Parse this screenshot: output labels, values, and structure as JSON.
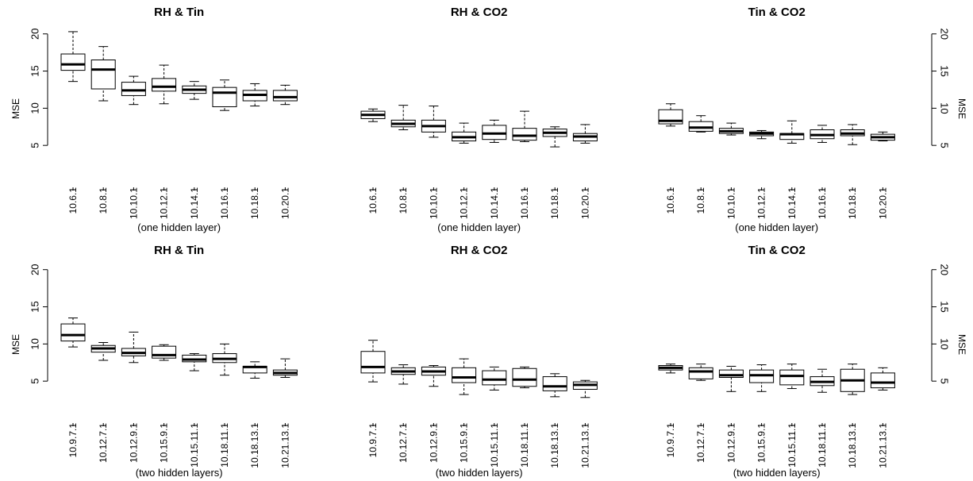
{
  "chart_data": [
    {
      "type": "boxplot",
      "title": "RH & Tin",
      "xlabel": "(one hidden layer)",
      "ylabel": "MSE",
      "ylim": [
        0,
        22
      ],
      "yticks": [
        5,
        10,
        15,
        20
      ],
      "categories": [
        "10.6.1",
        "10.8.1",
        "10.10.1",
        "10.12.1",
        "10.14.1",
        "10.16.1",
        "10.18.1",
        "10.20.1"
      ],
      "boxes": [
        {
          "min": 13.6,
          "q1": 15.1,
          "median": 15.9,
          "q3": 17.3,
          "max": 20.3
        },
        {
          "min": 11.0,
          "q1": 12.6,
          "median": 15.2,
          "q3": 16.5,
          "max": 18.3
        },
        {
          "min": 10.5,
          "q1": 11.7,
          "median": 12.4,
          "q3": 13.5,
          "max": 14.3
        },
        {
          "min": 10.6,
          "q1": 12.3,
          "median": 12.9,
          "q3": 14.0,
          "max": 15.8
        },
        {
          "min": 11.2,
          "q1": 12.0,
          "median": 12.5,
          "q3": 13.0,
          "max": 13.6
        },
        {
          "min": 9.7,
          "q1": 10.2,
          "median": 12.1,
          "q3": 12.8,
          "max": 13.8
        },
        {
          "min": 10.3,
          "q1": 11.0,
          "median": 11.8,
          "q3": 12.4,
          "max": 13.3
        },
        {
          "min": 10.5,
          "q1": 11.0,
          "median": 11.5,
          "q3": 12.4,
          "max": 13.1
        }
      ]
    },
    {
      "type": "boxplot",
      "title": "RH & CO2",
      "xlabel": "(one hidden layer)",
      "ylabel": "",
      "ylim": [
        0,
        22
      ],
      "categories": [
        "10.6.1",
        "10.8.1",
        "10.10.1",
        "10.12.1",
        "10.14.1",
        "10.16.1",
        "10.18.1",
        "10.20.1"
      ],
      "boxes": [
        {
          "min": 8.2,
          "q1": 8.6,
          "median": 9.1,
          "q3": 9.6,
          "max": 9.9
        },
        {
          "min": 7.1,
          "q1": 7.5,
          "median": 7.9,
          "q3": 8.4,
          "max": 10.4
        },
        {
          "min": 6.1,
          "q1": 6.8,
          "median": 7.6,
          "q3": 8.4,
          "max": 10.3
        },
        {
          "min": 5.3,
          "q1": 5.6,
          "median": 6.1,
          "q3": 6.8,
          "max": 8.0
        },
        {
          "min": 5.4,
          "q1": 5.8,
          "median": 6.6,
          "q3": 7.7,
          "max": 8.4
        },
        {
          "min": 5.5,
          "q1": 5.7,
          "median": 6.3,
          "q3": 7.3,
          "max": 9.6
        },
        {
          "min": 4.8,
          "q1": 6.2,
          "median": 6.7,
          "q3": 7.2,
          "max": 7.5
        },
        {
          "min": 5.3,
          "q1": 5.6,
          "median": 6.2,
          "q3": 6.6,
          "max": 7.8
        }
      ]
    },
    {
      "type": "boxplot",
      "title": "Tin & CO2",
      "xlabel": "(one hidden layer)",
      "ylabel": "MSE",
      "ylim": [
        0,
        22
      ],
      "yticks": [
        5,
        10,
        15,
        20
      ],
      "categories": [
        "10.6.1",
        "10.8.1",
        "10.10.1",
        "10.12.1",
        "10.14.1",
        "10.16.1",
        "10.18.1",
        "10.20.1"
      ],
      "boxes": [
        {
          "min": 7.6,
          "q1": 7.9,
          "median": 8.3,
          "q3": 9.8,
          "max": 10.6
        },
        {
          "min": 6.8,
          "q1": 6.9,
          "median": 7.4,
          "q3": 8.2,
          "max": 9.0
        },
        {
          "min": 6.4,
          "q1": 6.6,
          "median": 6.9,
          "q3": 7.3,
          "max": 8.0
        },
        {
          "min": 5.9,
          "q1": 6.3,
          "median": 6.6,
          "q3": 6.8,
          "max": 7.0
        },
        {
          "min": 5.3,
          "q1": 5.8,
          "median": 6.5,
          "q3": 6.6,
          "max": 8.3
        },
        {
          "min": 5.4,
          "q1": 5.9,
          "median": 6.4,
          "q3": 7.1,
          "max": 7.7
        },
        {
          "min": 5.1,
          "q1": 6.3,
          "median": 6.6,
          "q3": 7.1,
          "max": 7.8
        },
        {
          "min": 5.6,
          "q1": 5.7,
          "median": 6.1,
          "q3": 6.5,
          "max": 6.8
        }
      ]
    },
    {
      "type": "boxplot",
      "title": "RH & Tin",
      "xlabel": "(two hidden layers)",
      "ylabel": "MSE",
      "ylim": [
        0,
        22
      ],
      "yticks": [
        5,
        10,
        15,
        20
      ],
      "categories": [
        "10.9.7.1",
        "10.12.7.1",
        "10.12.9.1",
        "10.15.9.1",
        "10.15.11.1",
        "10.18.11.1",
        "10.18.13.1",
        "10.21.13.1"
      ],
      "boxes": [
        {
          "min": 9.6,
          "q1": 10.4,
          "median": 11.2,
          "q3": 12.7,
          "max": 13.5
        },
        {
          "min": 7.8,
          "q1": 8.9,
          "median": 9.4,
          "q3": 9.8,
          "max": 10.2
        },
        {
          "min": 7.5,
          "q1": 8.4,
          "median": 8.8,
          "q3": 9.4,
          "max": 11.6
        },
        {
          "min": 7.8,
          "q1": 8.1,
          "median": 8.5,
          "q3": 9.7,
          "max": 9.9
        },
        {
          "min": 6.4,
          "q1": 7.6,
          "median": 7.9,
          "q3": 8.5,
          "max": 8.7
        },
        {
          "min": 5.8,
          "q1": 7.5,
          "median": 8.0,
          "q3": 8.7,
          "max": 10.0
        },
        {
          "min": 5.4,
          "q1": 6.1,
          "median": 6.9,
          "q3": 7.0,
          "max": 7.6
        },
        {
          "min": 5.5,
          "q1": 5.8,
          "median": 6.1,
          "q3": 6.5,
          "max": 8.0
        }
      ]
    },
    {
      "type": "boxplot",
      "title": "RH & CO2",
      "xlabel": "(two hidden layers)",
      "ylabel": "",
      "ylim": [
        0,
        22
      ],
      "categories": [
        "10.9.7.1",
        "10.12.7.1",
        "10.12.9.1",
        "10.15.9.1",
        "10.15.11.1",
        "10.18.11.1",
        "10.18.13.1",
        "10.21.13.1"
      ],
      "boxes": [
        {
          "min": 4.9,
          "q1": 6.1,
          "median": 6.9,
          "q3": 9.0,
          "max": 10.5
        },
        {
          "min": 4.6,
          "q1": 5.9,
          "median": 6.3,
          "q3": 6.8,
          "max": 7.2
        },
        {
          "min": 4.3,
          "q1": 5.8,
          "median": 6.3,
          "q3": 6.9,
          "max": 7.1
        },
        {
          "min": 3.2,
          "q1": 4.8,
          "median": 5.5,
          "q3": 6.8,
          "max": 8.0
        },
        {
          "min": 3.8,
          "q1": 4.5,
          "median": 5.2,
          "q3": 6.4,
          "max": 6.9
        },
        {
          "min": 4.1,
          "q1": 4.3,
          "median": 5.2,
          "q3": 6.7,
          "max": 6.9
        },
        {
          "min": 2.9,
          "q1": 3.7,
          "median": 4.3,
          "q3": 5.6,
          "max": 6.0
        },
        {
          "min": 2.8,
          "q1": 3.9,
          "median": 4.5,
          "q3": 4.9,
          "max": 5.1
        }
      ]
    },
    {
      "type": "boxplot",
      "title": "Tin & CO2",
      "xlabel": "(two hidden layers)",
      "ylabel": "MSE",
      "ylim": [
        0,
        22
      ],
      "yticks": [
        5,
        10,
        15,
        20
      ],
      "categories": [
        "10.9.7.1",
        "10.12.7.1",
        "10.12.9.1",
        "10.15.9.1",
        "10.15.11.1",
        "10.18.11.1",
        "10.18.13.1",
        "10.21.13.1"
      ],
      "boxes": [
        {
          "min": 6.1,
          "q1": 6.5,
          "median": 6.8,
          "q3": 7.1,
          "max": 7.3
        },
        {
          "min": 5.1,
          "q1": 5.3,
          "median": 6.3,
          "q3": 6.8,
          "max": 7.3
        },
        {
          "min": 3.6,
          "q1": 5.5,
          "median": 5.8,
          "q3": 6.5,
          "max": 7.0
        },
        {
          "min": 3.6,
          "q1": 4.8,
          "median": 5.8,
          "q3": 6.5,
          "max": 7.2
        },
        {
          "min": 4.0,
          "q1": 4.5,
          "median": 5.7,
          "q3": 6.5,
          "max": 7.3
        },
        {
          "min": 3.5,
          "q1": 4.4,
          "median": 4.9,
          "q3": 5.6,
          "max": 6.6
        },
        {
          "min": 3.2,
          "q1": 3.6,
          "median": 5.1,
          "q3": 6.6,
          "max": 7.3
        },
        {
          "min": 3.8,
          "q1": 4.1,
          "median": 4.8,
          "q3": 6.1,
          "max": 6.8
        }
      ]
    }
  ]
}
